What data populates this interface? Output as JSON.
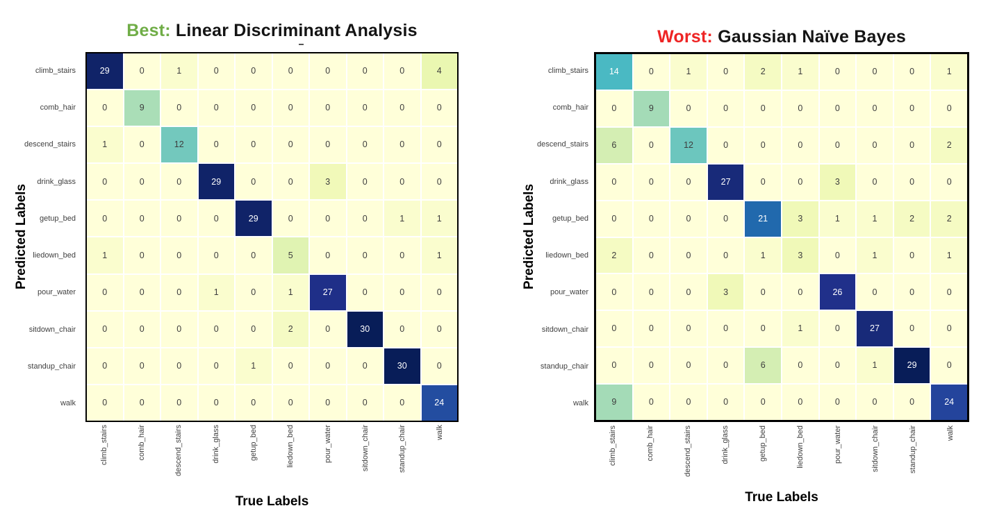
{
  "style": {
    "background": "#ffffff",
    "colormap_name": "YlGnBu",
    "colormap_stops": [
      "#ffffd9",
      "#edf8b1",
      "#c7e9b4",
      "#7fcdbb",
      "#41b6c4",
      "#1d91c0",
      "#225ea8",
      "#253494",
      "#081d58"
    ],
    "grid_line_color": "#ffffff",
    "border_color": "#000000",
    "tick_color": "#3f3f3f",
    "annot_dark": "#3d3d3d",
    "annot_light": "#ffffff",
    "title_color": "#141414",
    "best_green": "#70ad47",
    "worst_red": "#ee2424"
  },
  "chart_data": [
    {
      "type": "heatmap",
      "title": "Best: Linear Discriminant Analysis",
      "title_prefix": "Best:",
      "title_prefix_color": "#70ad47",
      "title_main": " Linear Discriminant Analysis",
      "xlabel": "True Labels",
      "ylabel": "Predicted Labels",
      "legend": "none",
      "grid": "white 2px cell separators, black outer frame",
      "x_categories": [
        "climb_stairs",
        "comb_hair",
        "descend_stairs",
        "drink_glass",
        "getup_bed",
        "liedown_bed",
        "pour_water",
        "sitdown_chair",
        "standup_chair",
        "walk"
      ],
      "y_categories": [
        "climb_stairs",
        "comb_hair",
        "descend_stairs",
        "drink_glass",
        "getup_bed",
        "liedown_bed",
        "pour_water",
        "sitdown_chair",
        "standup_chair",
        "walk"
      ],
      "vmin": 0,
      "vmax": 30,
      "colormap": "YlGnBu",
      "values": [
        [
          29,
          0,
          1,
          0,
          0,
          0,
          0,
          0,
          0,
          4
        ],
        [
          0,
          9,
          0,
          0,
          0,
          0,
          0,
          0,
          0,
          0
        ],
        [
          1,
          0,
          12,
          0,
          0,
          0,
          0,
          0,
          0,
          0
        ],
        [
          0,
          0,
          0,
          29,
          0,
          0,
          3,
          0,
          0,
          0
        ],
        [
          0,
          0,
          0,
          0,
          29,
          0,
          0,
          0,
          1,
          1
        ],
        [
          1,
          0,
          0,
          0,
          0,
          5,
          0,
          0,
          0,
          1
        ],
        [
          0,
          0,
          0,
          1,
          0,
          1,
          27,
          0,
          0,
          0
        ],
        [
          0,
          0,
          0,
          0,
          0,
          2,
          0,
          30,
          0,
          0
        ],
        [
          0,
          0,
          0,
          0,
          1,
          0,
          0,
          0,
          30,
          0
        ],
        [
          0,
          0,
          0,
          0,
          0,
          0,
          0,
          0,
          0,
          24
        ]
      ]
    },
    {
      "type": "heatmap",
      "title": "Worst: Gaussian Naïve Bayes",
      "title_prefix": "Worst:",
      "title_prefix_color": "#ee2424",
      "title_main": " Gaussian Naïve Bayes",
      "xlabel": "True Labels",
      "ylabel": "Predicted Labels",
      "legend": "none",
      "grid": "white 2px cell separators, black outer frame",
      "x_categories": [
        "climb_stairs",
        "comb_hair",
        "descend_stairs",
        "drink_glass",
        "getup_bed",
        "liedown_bed",
        "pour_water",
        "sitdown_chair",
        "standup_chair",
        "walk"
      ],
      "y_categories": [
        "climb_stairs",
        "comb_hair",
        "descend_stairs",
        "drink_glass",
        "getup_bed",
        "liedown_bed",
        "pour_water",
        "sitdown_chair",
        "standup_chair",
        "walk"
      ],
      "vmin": 0,
      "vmax": 29,
      "colormap": "YlGnBu",
      "values": [
        [
          14,
          0,
          1,
          0,
          2,
          1,
          0,
          0,
          0,
          1
        ],
        [
          0,
          9,
          0,
          0,
          0,
          0,
          0,
          0,
          0,
          0
        ],
        [
          6,
          0,
          12,
          0,
          0,
          0,
          0,
          0,
          0,
          2
        ],
        [
          0,
          0,
          0,
          27,
          0,
          0,
          3,
          0,
          0,
          0
        ],
        [
          0,
          0,
          0,
          0,
          21,
          3,
          1,
          1,
          2,
          2
        ],
        [
          2,
          0,
          0,
          0,
          1,
          3,
          0,
          1,
          0,
          1
        ],
        [
          0,
          0,
          0,
          3,
          0,
          0,
          26,
          0,
          0,
          0
        ],
        [
          0,
          0,
          0,
          0,
          0,
          1,
          0,
          27,
          0,
          0
        ],
        [
          0,
          0,
          0,
          0,
          6,
          0,
          0,
          1,
          29,
          0
        ],
        [
          9,
          0,
          0,
          0,
          0,
          0,
          0,
          0,
          0,
          24
        ]
      ]
    }
  ]
}
